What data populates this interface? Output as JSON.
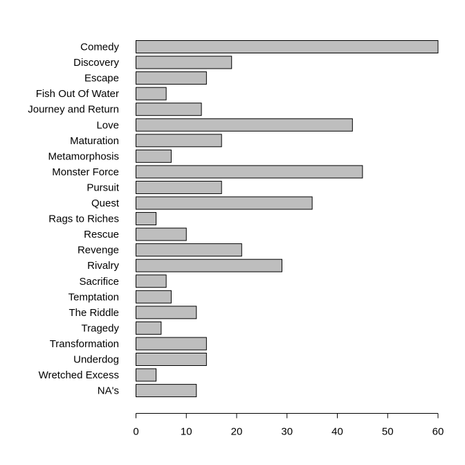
{
  "chart_data": {
    "type": "bar",
    "orientation": "horizontal",
    "categories": [
      "Comedy",
      "Discovery",
      "Escape",
      "Fish Out Of Water",
      "Journey and Return",
      "Love",
      "Maturation",
      "Metamorphosis",
      "Monster Force",
      "Pursuit",
      "Quest",
      "Rags to Riches",
      "Rescue",
      "Revenge",
      "Rivalry",
      "Sacrifice",
      "Temptation",
      "The Riddle",
      "Tragedy",
      "Transformation",
      "Underdog",
      "Wretched Excess",
      "NA's"
    ],
    "values": [
      60,
      19,
      14,
      6,
      13,
      43,
      17,
      7,
      45,
      17,
      35,
      4,
      10,
      21,
      29,
      6,
      7,
      12,
      5,
      14,
      14,
      4,
      12
    ],
    "xticks": [
      "0",
      "10",
      "20",
      "30",
      "40",
      "50",
      "60"
    ],
    "xlim": [
      0,
      60
    ],
    "title": "",
    "xlabel": "",
    "ylabel": "",
    "bar_color": "#bebebe",
    "grid": false,
    "legend": "none"
  }
}
